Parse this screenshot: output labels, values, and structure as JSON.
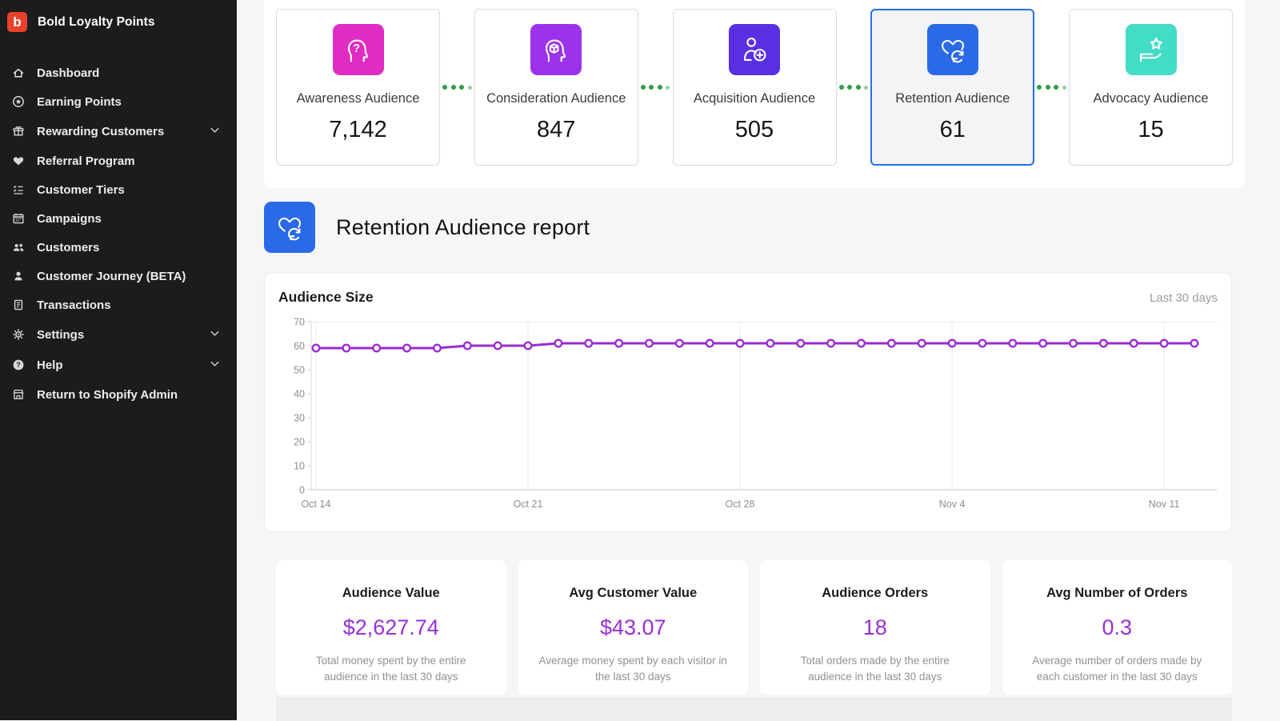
{
  "app": {
    "name": "Bold Loyalty Points",
    "logo_letter": "b",
    "logo_color": "#e8422c",
    "sidebar_bg": "#1c1c1e"
  },
  "sidebar": {
    "items": [
      {
        "label": "Dashboard",
        "icon": "home-icon",
        "expandable": false
      },
      {
        "label": "Earning Points",
        "icon": "star-circle-icon",
        "expandable": false
      },
      {
        "label": "Rewarding Customers",
        "icon": "gift-icon",
        "expandable": true
      },
      {
        "label": "Referral Program",
        "icon": "heart-icon",
        "expandable": false
      },
      {
        "label": "Customer Tiers",
        "icon": "checklist-icon",
        "expandable": false
      },
      {
        "label": "Campaigns",
        "icon": "calendar-icon",
        "expandable": false
      },
      {
        "label": "Customers",
        "icon": "users-icon",
        "expandable": false
      },
      {
        "label": "Customer Journey (BETA)",
        "icon": "user-icon",
        "expandable": false
      },
      {
        "label": "Transactions",
        "icon": "receipt-icon",
        "expandable": false
      },
      {
        "label": "Settings",
        "icon": "gear-icon",
        "expandable": true
      },
      {
        "label": "Help",
        "icon": "help-icon",
        "expandable": true
      },
      {
        "label": "Return to Shopify Admin",
        "icon": "store-icon",
        "expandable": false
      }
    ]
  },
  "funnel": {
    "connector_dot_color": "#2f9e44",
    "cards": [
      {
        "label": "Awareness Audience",
        "value": "7,142",
        "icon": "head-question-icon",
        "color": "#e02cc3",
        "selected": false
      },
      {
        "label": "Consideration Audience",
        "value": "847",
        "icon": "head-cube-icon",
        "color": "#9c32ea",
        "selected": false
      },
      {
        "label": "Acquisition Audience",
        "value": "505",
        "icon": "person-plus-icon",
        "color": "#5a2fe2",
        "selected": false
      },
      {
        "label": "Retention Audience",
        "value": "61",
        "icon": "heart-refresh-icon",
        "color": "#2b6ae6",
        "selected": true
      },
      {
        "label": "Advocacy Audience",
        "value": "15",
        "icon": "hand-star-icon",
        "color": "#43dcc6",
        "selected": false
      }
    ]
  },
  "report": {
    "title": "Retention Audience report",
    "icon": "heart-refresh-icon",
    "accent": "#2b6ae6"
  },
  "chart_data": {
    "type": "line",
    "title": "Audience Size",
    "range_label": "Last 30 days",
    "x": [
      "Oct 14",
      "Oct 15",
      "Oct 16",
      "Oct 17",
      "Oct 18",
      "Oct 19",
      "Oct 20",
      "Oct 21",
      "Oct 22",
      "Oct 23",
      "Oct 24",
      "Oct 25",
      "Oct 26",
      "Oct 27",
      "Oct 28",
      "Oct 29",
      "Oct 30",
      "Oct 31",
      "Nov 1",
      "Nov 2",
      "Nov 3",
      "Nov 4",
      "Nov 5",
      "Nov 6",
      "Nov 7",
      "Nov 8",
      "Nov 9",
      "Nov 10",
      "Nov 11",
      "Nov 12"
    ],
    "series": [
      {
        "name": "Audience Size",
        "values": [
          59,
          59,
          59,
          59,
          59,
          60,
          60,
          60,
          61,
          61,
          61,
          61,
          61,
          61,
          61,
          61,
          61,
          61,
          61,
          61,
          61,
          61,
          61,
          61,
          61,
          61,
          61,
          61,
          61,
          61
        ]
      }
    ],
    "x_tick_labels": [
      "Oct 14",
      "Oct 21",
      "Oct 28",
      "Nov 4",
      "Nov 11"
    ],
    "x_tick_indices": [
      0,
      7,
      14,
      21,
      28
    ],
    "ylim": [
      0,
      70
    ],
    "y_ticks": [
      0,
      10,
      20,
      30,
      40,
      50,
      60,
      70
    ],
    "line_color": "#9b2cd1",
    "grid": true,
    "legend": false
  },
  "stats": {
    "value_color": "#9a2fd8",
    "cards": [
      {
        "title": "Audience Value",
        "value": "$2,627.74",
        "description": "Total money spent by the entire audience in the last 30 days"
      },
      {
        "title": "Avg Customer Value",
        "value": "$43.07",
        "description": "Average money spent by each visitor in the last 30 days"
      },
      {
        "title": "Audience Orders",
        "value": "18",
        "description": "Total orders made by the entire audience in the last 30 days"
      },
      {
        "title": "Avg Number of Orders",
        "value": "0.3",
        "description": "Average number of orders made by each customer in the last 30 days"
      }
    ]
  }
}
